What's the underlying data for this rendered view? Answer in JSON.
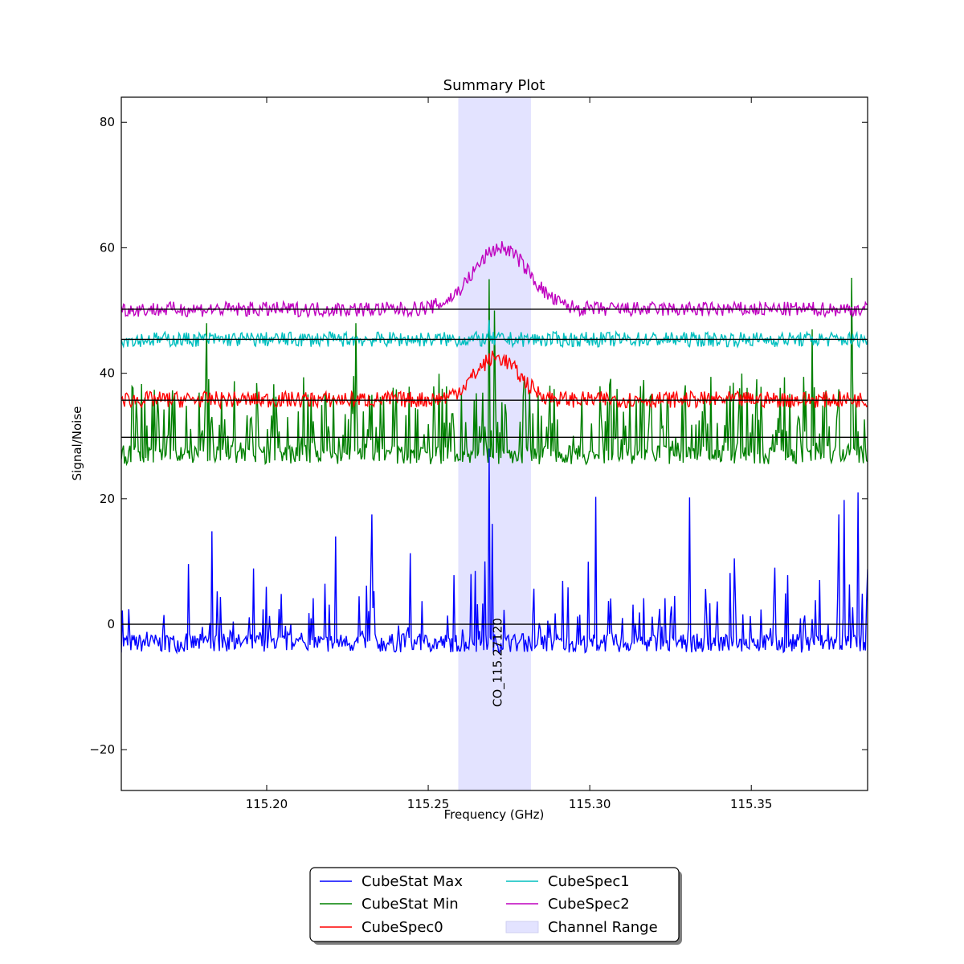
{
  "chart_data": {
    "type": "line",
    "title": "Summary Plot",
    "xlabel": "Frequency (GHz)",
    "ylabel": "Signal/Noise",
    "xlim": [
      115.155,
      115.386
    ],
    "ylim": [
      -26.5,
      84
    ],
    "x_ticks": [
      115.2,
      115.25,
      115.3,
      115.35
    ],
    "x_tick_labels": [
      "115.20",
      "115.25",
      "115.30",
      "115.35"
    ],
    "y_ticks": [
      -20,
      0,
      20,
      40,
      60,
      80
    ],
    "y_tick_labels": [
      "−20",
      "0",
      "20",
      "40",
      "60",
      "80"
    ],
    "grid": false,
    "channel_range": {
      "name": "Channel Range",
      "x": [
        115.2593,
        115.2818
      ],
      "color": "#e3e3ff"
    },
    "line_marker": {
      "label": "CO_115.27120",
      "x": 115.2712
    },
    "baselines": [
      0,
      29.8,
      35.7,
      45.4,
      50.2
    ],
    "noise_seed": 7,
    "series": [
      {
        "name": "CubeStat Max",
        "color": "#0000ff",
        "kind": "max",
        "base": -3,
        "amp": 1.5,
        "spike_prob": 0.22,
        "spike_max": 15,
        "peaks": [
          [
            115.2688,
            28
          ],
          [
            115.27,
            16
          ],
          [
            115.2675,
            10
          ],
          [
            115.2632,
            8
          ],
          [
            115.2647,
            8.5
          ]
        ],
        "spikes": [
          [
            115.2325,
            17.5
          ],
          [
            115.1832,
            14.8
          ],
          [
            115.302,
            20.3
          ],
          [
            115.331,
            20.2
          ],
          [
            115.383,
            21
          ],
          [
            115.3788,
            19.8
          ],
          [
            115.2212,
            14
          ],
          [
            115.377,
            17.5
          ]
        ]
      },
      {
        "name": "CubeStat Min",
        "color": "#008000",
        "kind": "min",
        "base": 27,
        "amp": 1.5,
        "spike_prob": 0.4,
        "spike_max": 12,
        "peaks": [
          [
            115.2688,
            55
          ],
          [
            115.2705,
            50
          ]
        ],
        "spikes": [
          [
            115.381,
            55.2
          ],
          [
            115.3688,
            47
          ],
          [
            115.2275,
            48
          ],
          [
            115.1815,
            48
          ]
        ]
      },
      {
        "name": "CubeSpec0",
        "color": "#ff0000",
        "kind": "spec",
        "base": 35.8,
        "amp": 1.3,
        "gauss_amp": 6.7,
        "gauss_center": 115.2712,
        "gauss_sigma": 0.0068
      },
      {
        "name": "CubeSpec1",
        "color": "#00bfbf",
        "kind": "spec",
        "base": 45.4,
        "amp": 1.2,
        "gauss_amp": 0,
        "gauss_center": 115.2712,
        "gauss_sigma": 0.007,
        "spikes": [
          [
            115.269,
            48.5
          ]
        ]
      },
      {
        "name": "CubeSpec2",
        "color": "#bf00bf",
        "kind": "spec",
        "base": 50.2,
        "amp": 1.2,
        "gauss_amp": 9.8,
        "gauss_center": 115.2725,
        "gauss_sigma": 0.0085
      }
    ],
    "legend": {
      "placement": "below-center",
      "columns": [
        [
          "CubeStat Max",
          "CubeStat Min",
          "CubeSpec0"
        ],
        [
          "CubeSpec1",
          "CubeSpec2",
          "Channel Range"
        ]
      ]
    }
  }
}
